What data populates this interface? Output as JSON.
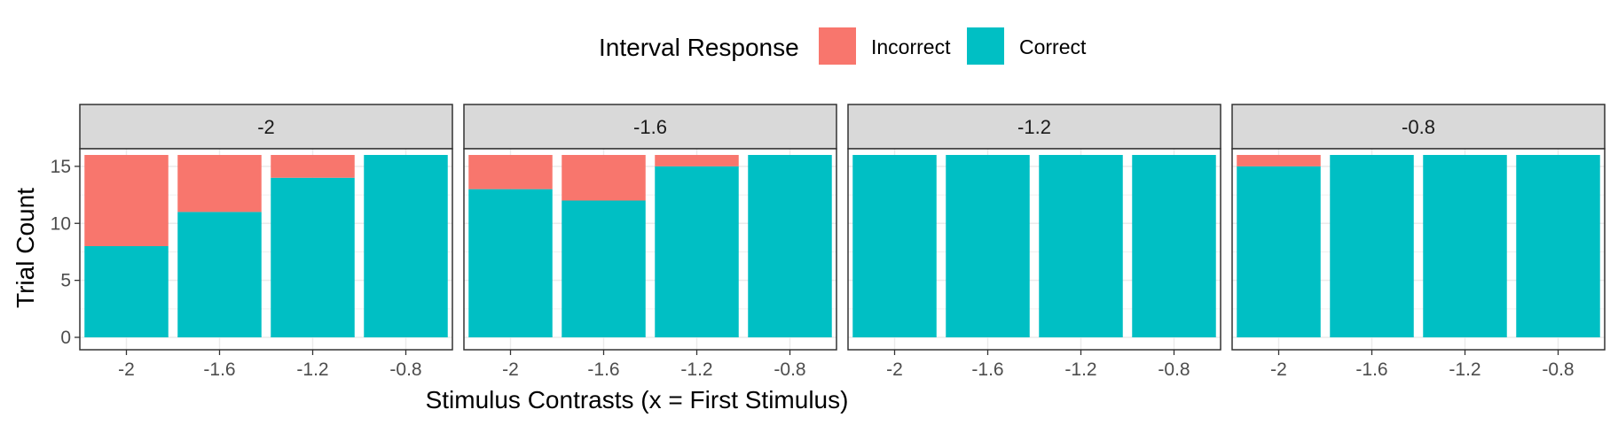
{
  "chart_data": {
    "type": "bar",
    "stacked": true,
    "facet_strips": [
      "-2",
      "-1.6",
      "-1.2",
      "-0.8"
    ],
    "categories": [
      "-2",
      "-1.6",
      "-1.2",
      "-0.8"
    ],
    "xlabel": "Stimulus Contrasts (x = First Stimulus)",
    "ylabel": "Trial Count",
    "ylim": [
      0,
      17.6
    ],
    "yticks": [
      0,
      5,
      10,
      15
    ],
    "grid": true,
    "legend": {
      "title": "Interval Response",
      "position": "top",
      "entries": [
        {
          "name": "Incorrect",
          "color": "#F8766D"
        },
        {
          "name": "Correct",
          "color": "#00BFC4"
        }
      ]
    },
    "panels": [
      {
        "strip": "-2",
        "series": [
          {
            "name": "Correct",
            "values": [
              8,
              11,
              14,
              16
            ]
          },
          {
            "name": "Incorrect",
            "values": [
              8,
              5,
              2,
              0
            ]
          }
        ]
      },
      {
        "strip": "-1.6",
        "series": [
          {
            "name": "Correct",
            "values": [
              13,
              12,
              15,
              16
            ]
          },
          {
            "name": "Incorrect",
            "values": [
              3,
              4,
              1,
              0
            ]
          }
        ]
      },
      {
        "strip": "-1.2",
        "series": [
          {
            "name": "Correct",
            "values": [
              16,
              16,
              16,
              16
            ]
          },
          {
            "name": "Incorrect",
            "values": [
              0,
              0,
              0,
              0
            ]
          }
        ]
      },
      {
        "strip": "-0.8",
        "series": [
          {
            "name": "Correct",
            "values": [
              15,
              16,
              16,
              16
            ]
          },
          {
            "name": "Incorrect",
            "values": [
              1,
              0,
              0,
              0
            ]
          }
        ]
      }
    ]
  }
}
